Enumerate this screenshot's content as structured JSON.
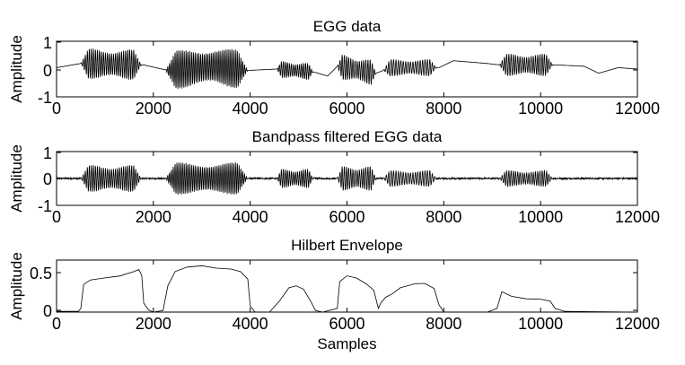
{
  "chart_data": [
    {
      "type": "line",
      "title": "EGG data",
      "xlabel": "",
      "ylabel": "Amplitude",
      "xlim": [
        0,
        12000
      ],
      "ylim": [
        -1,
        1
      ],
      "xticks": [
        "0",
        "2000",
        "4000",
        "6000",
        "8000",
        "10000",
        "12000"
      ],
      "yticks": [
        "-1",
        "0",
        "1"
      ],
      "grid": false,
      "signal": "oscillatory segments with slowly varying baseline",
      "segments": [
        {
          "start": 500,
          "end": 1750,
          "amplitude": 0.55,
          "cycles": 30
        },
        {
          "start": 2250,
          "end": 3950,
          "amplitude": 0.7,
          "cycles": 45
        },
        {
          "start": 4550,
          "end": 5300,
          "amplitude": 0.3,
          "cycles": 18
        },
        {
          "start": 5800,
          "end": 6600,
          "amplitude": 0.45,
          "cycles": 18
        },
        {
          "start": 6750,
          "end": 7850,
          "amplitude": 0.3,
          "cycles": 22
        },
        {
          "start": 9150,
          "end": 10250,
          "amplitude": 0.4,
          "cycles": 24
        }
      ],
      "baseline_points": [
        [
          0,
          0.05
        ],
        [
          500,
          0.2
        ],
        [
          1800,
          0.15
        ],
        [
          2300,
          -0.05
        ],
        [
          3300,
          0.1
        ],
        [
          3950,
          -0.05
        ],
        [
          4550,
          0.0
        ],
        [
          5300,
          -0.1
        ],
        [
          5600,
          -0.25
        ],
        [
          5800,
          0.1
        ],
        [
          6600,
          -0.15
        ],
        [
          6900,
          0.05
        ],
        [
          7900,
          0.05
        ],
        [
          8200,
          0.3
        ],
        [
          8900,
          0.2
        ],
        [
          9150,
          0.15
        ],
        [
          10300,
          0.15
        ],
        [
          10900,
          0.1
        ],
        [
          11200,
          -0.15
        ],
        [
          11600,
          0.05
        ],
        [
          12000,
          0.0
        ]
      ]
    },
    {
      "type": "line",
      "title": "Bandpass filtered EGG data",
      "xlabel": "",
      "ylabel": "Amplitude",
      "xlim": [
        0,
        12000
      ],
      "ylim": [
        -1,
        1
      ],
      "xticks": [
        "0",
        "2000",
        "4000",
        "6000",
        "8000",
        "10000",
        "12000"
      ],
      "yticks": [
        "-1",
        "0",
        "1"
      ],
      "grid": false,
      "segments": [
        {
          "start": 500,
          "end": 1750,
          "amplitude": 0.5,
          "cycles": 30
        },
        {
          "start": 2250,
          "end": 3950,
          "amplitude": 0.6,
          "cycles": 45
        },
        {
          "start": 4550,
          "end": 5300,
          "amplitude": 0.35,
          "cycles": 18
        },
        {
          "start": 5800,
          "end": 6600,
          "amplitude": 0.45,
          "cycles": 18
        },
        {
          "start": 6750,
          "end": 7850,
          "amplitude": 0.3,
          "cycles": 22
        },
        {
          "start": 9150,
          "end": 10250,
          "amplitude": 0.3,
          "cycles": 24
        }
      ],
      "noise_amplitude": 0.03
    },
    {
      "type": "line",
      "title": "Hilbert Envelope",
      "xlabel": "Samples",
      "ylabel": "Amplitude",
      "xlim": [
        0,
        12000
      ],
      "ylim": [
        0,
        0.7
      ],
      "xticks": [
        "0",
        "2000",
        "4000",
        "6000",
        "8000",
        "10000",
        "12000"
      ],
      "yticks": [
        "0",
        "0.5"
      ],
      "grid": false,
      "points": [
        [
          0,
          0.01
        ],
        [
          450,
          0.01
        ],
        [
          500,
          0.05
        ],
        [
          560,
          0.38
        ],
        [
          700,
          0.43
        ],
        [
          1000,
          0.45
        ],
        [
          1300,
          0.48
        ],
        [
          1600,
          0.55
        ],
        [
          1700,
          0.57
        ],
        [
          1760,
          0.5
        ],
        [
          1800,
          0.12
        ],
        [
          1900,
          0.03
        ],
        [
          2000,
          0.0
        ],
        [
          2200,
          0.02
        ],
        [
          2300,
          0.35
        ],
        [
          2450,
          0.55
        ],
        [
          2700,
          0.6
        ],
        [
          3000,
          0.62
        ],
        [
          3300,
          0.6
        ],
        [
          3600,
          0.58
        ],
        [
          3800,
          0.55
        ],
        [
          3950,
          0.45
        ],
        [
          4000,
          0.08
        ],
        [
          4100,
          0.0
        ],
        [
          4400,
          0.0
        ],
        [
          4600,
          0.15
        ],
        [
          4800,
          0.33
        ],
        [
          4950,
          0.35
        ],
        [
          5100,
          0.3
        ],
        [
          5250,
          0.15
        ],
        [
          5350,
          0.02
        ],
        [
          5500,
          0.0
        ],
        [
          5800,
          0.05
        ],
        [
          5850,
          0.4
        ],
        [
          6000,
          0.48
        ],
        [
          6200,
          0.45
        ],
        [
          6400,
          0.38
        ],
        [
          6550,
          0.3
        ],
        [
          6650,
          0.05
        ],
        [
          6700,
          0.12
        ],
        [
          6800,
          0.2
        ],
        [
          6950,
          0.25
        ],
        [
          7100,
          0.32
        ],
        [
          7400,
          0.38
        ],
        [
          7600,
          0.38
        ],
        [
          7800,
          0.32
        ],
        [
          7900,
          0.1
        ],
        [
          8000,
          0.0
        ],
        [
          8900,
          0.0
        ],
        [
          9100,
          0.05
        ],
        [
          9200,
          0.28
        ],
        [
          9400,
          0.22
        ],
        [
          9700,
          0.18
        ],
        [
          10000,
          0.17
        ],
        [
          10200,
          0.15
        ],
        [
          10300,
          0.05
        ],
        [
          10500,
          0.01
        ],
        [
          12000,
          0.0
        ]
      ]
    }
  ]
}
